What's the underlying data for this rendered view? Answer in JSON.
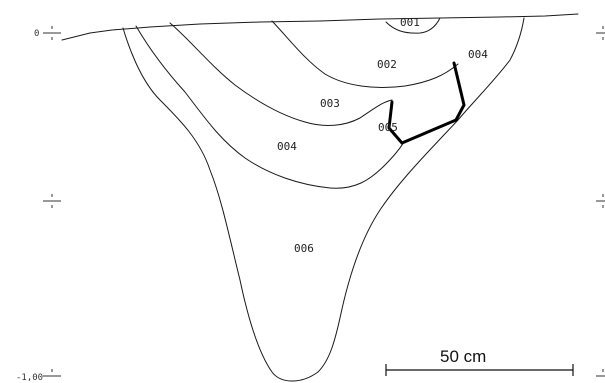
{
  "figure": {
    "layers": [
      {
        "id": "001",
        "label": "001"
      },
      {
        "id": "002",
        "label": "002"
      },
      {
        "id": "003",
        "label": "003"
      },
      {
        "id": "004",
        "label": "004"
      },
      {
        "id": "004b",
        "label": "004"
      },
      {
        "id": "005",
        "label": "005"
      },
      {
        "id": "006",
        "label": "006"
      }
    ],
    "depth_axis": {
      "top_label": "0",
      "bottom_label": "-1,00"
    },
    "scale_bar": {
      "label": "50 cm"
    }
  }
}
